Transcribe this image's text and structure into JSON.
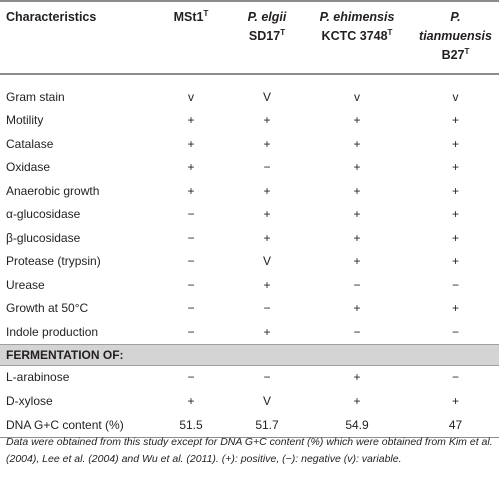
{
  "header": {
    "col0": "Characteristics",
    "col1_main": "MSt1",
    "col1_sup": "T",
    "col2_l1": "P. elgii",
    "col2_l2": "SD17",
    "col2_sup": "T",
    "col3_l1": "P. ehimensis",
    "col3_l2": "KCTC 3748",
    "col3_sup": "T",
    "col4_l1": "P. tianmuensis",
    "col4_l2": "B27",
    "col4_sup": "T"
  },
  "rows": [
    {
      "label": "Gram stain",
      "v1": "v",
      "v2": "V",
      "v3": "v",
      "v4": "v"
    },
    {
      "label": "Motility",
      "v1": "+",
      "v2": "+",
      "v3": "+",
      "v4": "+"
    },
    {
      "label": "Catalase",
      "v1": "+",
      "v2": "+",
      "v3": "+",
      "v4": "+"
    },
    {
      "label": "Oxidase",
      "v1": "+",
      "v2": "−",
      "v3": "+",
      "v4": "+"
    },
    {
      "label": "Anaerobic growth",
      "v1": "+",
      "v2": "+",
      "v3": "+",
      "v4": "+"
    },
    {
      "label": "α-glucosidase",
      "v1": "−",
      "v2": "+",
      "v3": "+",
      "v4": "+"
    },
    {
      "label": "β-glucosidase",
      "v1": "−",
      "v2": "+",
      "v3": "+",
      "v4": "+"
    },
    {
      "label": "Protease (trypsin)",
      "v1": "−",
      "v2": "V",
      "v3": "+",
      "v4": "+"
    },
    {
      "label": "Urease",
      "v1": "−",
      "v2": "+",
      "v3": "−",
      "v4": "−"
    },
    {
      "label": "Growth at 50°C",
      "v1": "−",
      "v2": "−",
      "v3": "+",
      "v4": "+"
    },
    {
      "label": "Indole production",
      "v1": "−",
      "v2": "+",
      "v3": "−",
      "v4": "−"
    }
  ],
  "section_title": "FERMENTATION OF:",
  "rows2": [
    {
      "label": "L-arabinose",
      "v1": "−",
      "v2": "−",
      "v3": "+",
      "v4": "−"
    },
    {
      "label": "D-xylose",
      "v1": "+",
      "v2": "V",
      "v3": "+",
      "v4": "+"
    },
    {
      "label": "DNA G+C content (%)",
      "v1": "51.5",
      "v2": "51.7",
      "v3": "54.9",
      "v4": "47"
    }
  ],
  "footnote": "Data were obtained from this study except for DNA G+C content (%) which were obtained from Kim et al. (2004), Lee et al. (2004) and Wu et al. (2011). (+): positive, (−): negative (v): variable."
}
